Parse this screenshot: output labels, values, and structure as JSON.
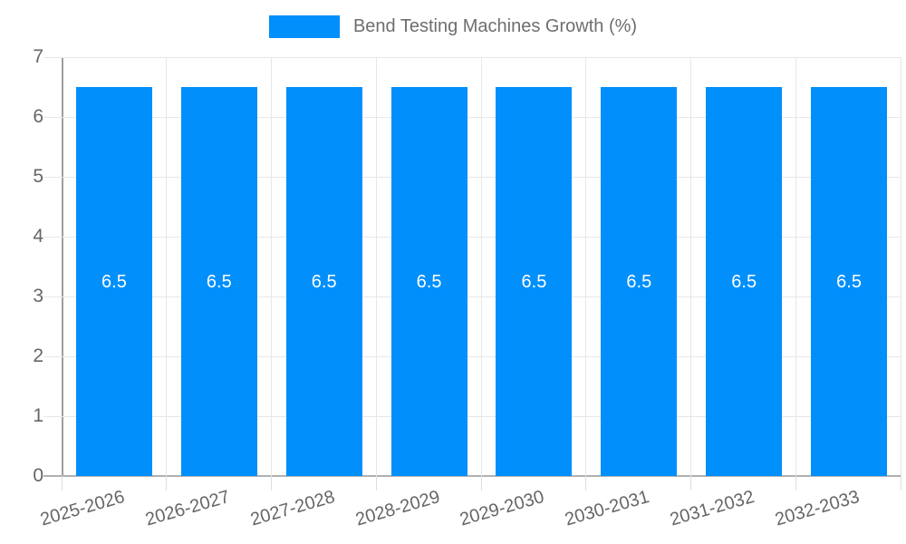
{
  "chart_data": {
    "type": "bar",
    "title": "",
    "legend": {
      "label": "Bend Testing Machines Growth (%)",
      "position": "top"
    },
    "categories": [
      "2025-2026",
      "2026-2027",
      "2027-2028",
      "2028-2029",
      "2029-2030",
      "2030-2031",
      "2031-2032",
      "2032-2033"
    ],
    "series": [
      {
        "name": "Bend Testing Machines Growth (%)",
        "values": [
          6.5,
          6.5,
          6.5,
          6.5,
          6.5,
          6.5,
          6.5,
          6.5
        ]
      }
    ],
    "data_labels": [
      "6.5",
      "6.5",
      "6.5",
      "6.5",
      "6.5",
      "6.5",
      "6.5",
      "6.5"
    ],
    "xlabel": "",
    "ylabel": "",
    "ylim": [
      0,
      7
    ],
    "ytick_step": 1,
    "yticks": [
      "0",
      "1",
      "2",
      "3",
      "4",
      "5",
      "6",
      "7"
    ],
    "grid": "both",
    "colors": {
      "bar": "#008FFB",
      "grid": "#e7e7e7",
      "axis_y": "#9e9e9e",
      "axis_x": "#b1b1b1",
      "tick": "#dedede",
      "tick_label": "#666666",
      "legend_text": "#6e6e6e",
      "data_label": "#ffffff"
    }
  }
}
